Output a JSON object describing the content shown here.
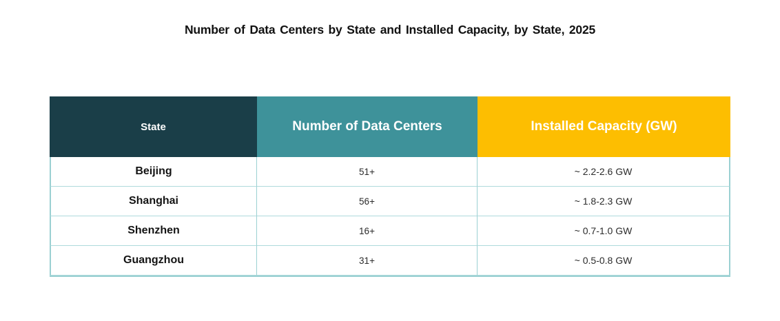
{
  "title": "Number of Data Centers by State and Installed Capacity, by State, 2025",
  "table": {
    "columns": [
      {
        "label": "State"
      },
      {
        "label": "Number of Data Centers"
      },
      {
        "label": "Installed Capacity (GW)"
      }
    ],
    "rows": [
      {
        "state": "Beijing",
        "data_centers": "51+",
        "capacity": "~ 2.2-2.6 GW"
      },
      {
        "state": "Shanghai",
        "data_centers": "56+",
        "capacity": "~ 1.8-2.3 GW"
      },
      {
        "state": "Shenzhen",
        "data_centers": "16+",
        "capacity": "~ 0.7-1.0 GW"
      },
      {
        "state": "Guangzhou",
        "data_centers": "31+",
        "capacity": "~ 0.5-0.8 GW"
      }
    ]
  },
  "colors": {
    "header_state_bg": "#1a3e48",
    "header_centers_bg": "#3e929a",
    "header_capacity_bg": "#fdbe01",
    "header_text": "#ffffff",
    "body_text": "#2b2b2b",
    "border": "#9ad0d2",
    "background": "#ffffff"
  },
  "chart_data": {
    "type": "table",
    "title": "Number of Data Centers by State and Installed Capacity, by State, 2025",
    "columns": [
      "State",
      "Number of Data Centers",
      "Installed Capacity (GW)"
    ],
    "rows": [
      [
        "Beijing",
        "51+",
        "~ 2.2-2.6 GW"
      ],
      [
        "Shanghai",
        "56+",
        "~ 1.8-2.3 GW"
      ],
      [
        "Shenzhen",
        "16+",
        "~ 0.7-1.0 GW"
      ],
      [
        "Guangzhou",
        "31+",
        "~ 0.5-0.8 GW"
      ]
    ]
  }
}
